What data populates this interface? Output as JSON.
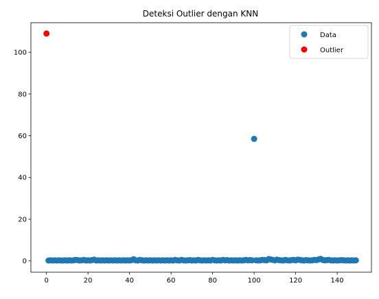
{
  "chart_data": {
    "type": "scatter",
    "title": "Deteksi Outlier dengan KNN",
    "xlabel": "",
    "ylabel": "",
    "xlim": [
      -7.5,
      156.5
    ],
    "ylim": [
      -5.4,
      114.2
    ],
    "xticks": [
      0,
      20,
      40,
      60,
      80,
      100,
      120,
      140
    ],
    "yticks": [
      0,
      20,
      40,
      60,
      80,
      100
    ],
    "grid": false,
    "legend_position": "top-right",
    "series": [
      {
        "name": "Data",
        "color": "#1f77b4",
        "x": [
          1,
          2,
          3,
          4,
          5,
          6,
          7,
          8,
          9,
          10,
          11,
          12,
          13,
          14,
          15,
          16,
          17,
          18,
          19,
          20,
          21,
          22,
          23,
          24,
          25,
          26,
          27,
          28,
          29,
          30,
          31,
          32,
          33,
          34,
          35,
          36,
          37,
          38,
          39,
          40,
          41,
          42,
          43,
          44,
          45,
          46,
          47,
          48,
          49,
          50,
          51,
          52,
          53,
          54,
          55,
          56,
          57,
          58,
          59,
          60,
          61,
          62,
          63,
          64,
          65,
          66,
          67,
          68,
          69,
          70,
          71,
          72,
          73,
          74,
          75,
          76,
          77,
          78,
          79,
          80,
          81,
          82,
          83,
          84,
          85,
          86,
          87,
          88,
          89,
          90,
          91,
          92,
          93,
          94,
          95,
          96,
          97,
          98,
          99,
          100,
          101,
          102,
          103,
          104,
          105,
          106,
          107,
          108,
          109,
          110,
          111,
          112,
          113,
          114,
          115,
          116,
          117,
          118,
          119,
          120,
          121,
          122,
          123,
          124,
          125,
          126,
          127,
          128,
          129,
          130,
          131,
          132,
          133,
          134,
          135,
          136,
          137,
          138,
          139,
          140,
          141,
          142,
          143,
          144,
          145,
          146,
          147,
          148,
          149
        ],
        "y": [
          0.2,
          0.3,
          0.2,
          0.3,
          0.2,
          0.3,
          0.2,
          0.2,
          0.3,
          0.2,
          0.3,
          0.2,
          0.3,
          0.5,
          0.4,
          0.2,
          0.3,
          0.5,
          0.2,
          0.3,
          0.2,
          0.4,
          0.6,
          0.2,
          0.3,
          0.2,
          0.3,
          0.2,
          0.3,
          0.2,
          0.3,
          0.2,
          0.3,
          0.2,
          0.3,
          0.2,
          0.3,
          0.2,
          0.3,
          0.2,
          0.4,
          0.8,
          0.3,
          0.2,
          0.5,
          0.3,
          0.2,
          0.3,
          0.2,
          0.3,
          0.2,
          0.3,
          0.2,
          0.3,
          0.2,
          0.3,
          0.2,
          0.3,
          0.2,
          0.3,
          0.2,
          0.5,
          0.3,
          0.2,
          0.5,
          0.3,
          0.2,
          0.3,
          0.4,
          0.2,
          0.3,
          0.2,
          0.5,
          0.3,
          0.2,
          0.3,
          0.2,
          0.3,
          0.2,
          0.5,
          0.3,
          0.2,
          0.3,
          0.2,
          0.5,
          0.3,
          0.4,
          0.2,
          0.3,
          0.2,
          0.3,
          0.2,
          0.3,
          0.2,
          0.3,
          0.5,
          0.3,
          0.4,
          0.3,
          58.5,
          0.3,
          0.2,
          0.3,
          0.5,
          0.4,
          0.3,
          0.9,
          0.7,
          0.5,
          0.3,
          0.6,
          0.4,
          0.3,
          0.2,
          0.5,
          0.3,
          0.2,
          0.4,
          0.5,
          0.3,
          0.6,
          0.5,
          0.3,
          0.2,
          0.4,
          0.3,
          0.2,
          0.3,
          0.5,
          0.4,
          0.7,
          1.0,
          0.5,
          0.3,
          0.4,
          0.5,
          0.3,
          0.2,
          0.3,
          0.2,
          0.3,
          0.4,
          0.3,
          0.2,
          0.3,
          0.2,
          0.3,
          0.2,
          0.3
        ]
      },
      {
        "name": "Outlier",
        "color": "#ff0000",
        "x": [
          0
        ],
        "y": [
          109
        ]
      }
    ]
  }
}
